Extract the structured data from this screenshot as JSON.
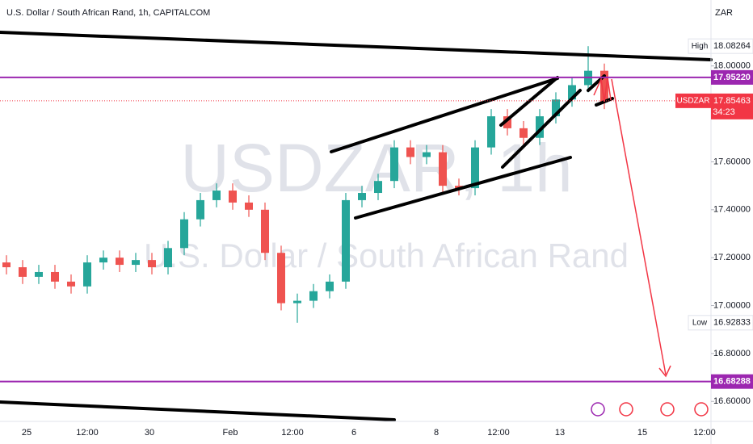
{
  "chart_data": {
    "type": "candlestick",
    "title": "U.S. Dollar / South African Rand, 1h, CAPITALCOM",
    "watermark": "USDZAR, 1h",
    "watermark_subtitle": "U.S. Dollar / South African Rand",
    "currency": "ZAR",
    "x_labels": [
      "25",
      "12:00",
      "30",
      "Feb",
      "12:00",
      "6",
      "8",
      "12:00",
      "13",
      "15",
      "12:00"
    ],
    "open": [
      17.18,
      17.16,
      17.12,
      17.14,
      17.1,
      17.08,
      17.18,
      17.2,
      17.17,
      17.19,
      17.16,
      17.24,
      17.36,
      17.44,
      17.48,
      17.43,
      17.4,
      17.22,
      17.01,
      17.02,
      17.06,
      17.1,
      17.44,
      17.47,
      17.52,
      17.66,
      17.62,
      17.64,
      17.5,
      17.49,
      17.66,
      17.79,
      17.74,
      17.7,
      17.79,
      17.86,
      17.92,
      17.98
    ],
    "high": [
      17.21,
      17.19,
      17.17,
      17.17,
      17.13,
      17.21,
      17.23,
      17.23,
      17.22,
      17.22,
      17.27,
      17.39,
      17.47,
      17.51,
      17.51,
      17.46,
      17.43,
      17.25,
      17.05,
      17.09,
      17.13,
      17.47,
      17.5,
      17.55,
      17.69,
      17.69,
      17.67,
      17.67,
      17.53,
      17.69,
      17.82,
      17.82,
      17.77,
      17.82,
      17.89,
      17.95,
      18.08264,
      18.01
    ],
    "low": [
      17.13,
      17.09,
      17.09,
      17.07,
      17.05,
      17.05,
      17.15,
      17.14,
      17.14,
      17.13,
      17.13,
      17.21,
      17.33,
      17.41,
      17.4,
      17.37,
      17.19,
      16.98,
      16.92833,
      16.99,
      17.03,
      17.07,
      17.41,
      17.44,
      17.49,
      17.59,
      17.59,
      17.47,
      17.46,
      17.46,
      17.63,
      17.71,
      17.67,
      17.67,
      17.76,
      17.83,
      17.89,
      17.82
    ],
    "close": [
      17.16,
      17.12,
      17.14,
      17.1,
      17.08,
      17.18,
      17.2,
      17.17,
      17.19,
      17.16,
      17.24,
      17.36,
      17.44,
      17.48,
      17.43,
      17.4,
      17.22,
      17.01,
      17.02,
      17.06,
      17.1,
      17.44,
      17.47,
      17.52,
      17.66,
      17.62,
      17.64,
      17.5,
      17.49,
      17.66,
      17.79,
      17.74,
      17.7,
      17.79,
      17.86,
      17.92,
      17.98,
      17.85
    ],
    "up_color": "#26a69a",
    "down_color": "#ef5350",
    "ylim": [
      16.5166,
      18.2753
    ],
    "yticks": [
      {
        "value": 16.6,
        "label": "16.60000"
      },
      {
        "value": 16.8,
        "label": "16.80000"
      },
      {
        "value": 17.0,
        "label": "17.00000"
      },
      {
        "value": 17.2,
        "label": "17.20000"
      },
      {
        "value": 17.4,
        "label": "17.40000"
      },
      {
        "value": 17.6,
        "label": "17.60000"
      },
      {
        "value": 18.0,
        "label": "18.00000"
      }
    ],
    "levels": [
      {
        "value": 17.9522,
        "label": "17.95220",
        "color": "#9c27b0"
      },
      {
        "value": 16.68288,
        "label": "16.68288",
        "color": "#9c27b0"
      }
    ],
    "high_marker": {
      "name": "High",
      "value": 18.08264
    },
    "low_marker": {
      "name": "Low",
      "value": 16.92833
    },
    "last": {
      "name": "USDZAR",
      "value": 17.85463,
      "countdown": "34:23",
      "color": "#f23645"
    }
  }
}
